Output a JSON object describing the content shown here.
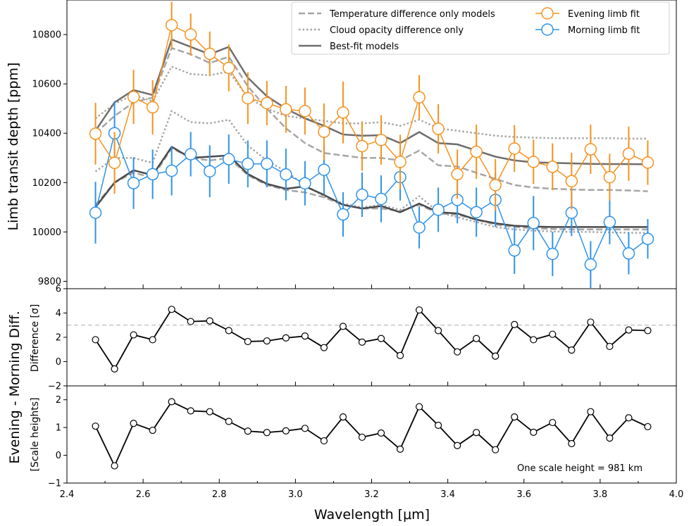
{
  "chart_data": [
    {
      "type": "line",
      "panel": "top",
      "ylabel": "Limb transit depth [ppm]",
      "xlim": [
        2.4,
        4.0
      ],
      "ylim": [
        9770,
        10940
      ],
      "yticks": [
        9800,
        10000,
        10200,
        10400,
        10600,
        10800
      ],
      "legend_position": "top-right",
      "legend": [
        {
          "label": "Temperature difference only models",
          "style": "dashed",
          "color": "#a6a6a6"
        },
        {
          "label": "Cloud opacity difference only",
          "style": "dotted",
          "color": "#a6a6a6"
        },
        {
          "label": "Best-fit models",
          "style": "solid",
          "color": "#6e6e6e"
        },
        {
          "label": "Evening limb fit",
          "style": "marker",
          "color": "#f5921e"
        },
        {
          "label": "Morning limb fit",
          "style": "marker",
          "color": "#2e93e8"
        }
      ],
      "x": [
        2.475,
        2.525,
        2.575,
        2.625,
        2.675,
        2.725,
        2.775,
        2.825,
        2.875,
        2.925,
        2.975,
        3.025,
        3.075,
        3.125,
        3.175,
        3.225,
        3.275,
        3.325,
        3.375,
        3.425,
        3.475,
        3.525,
        3.575,
        3.625,
        3.675,
        3.725,
        3.775,
        3.825,
        3.875,
        3.925
      ],
      "series": [
        {
          "name": "Evening limb fit",
          "color": "#f5921e",
          "values": [
            10398,
            10280,
            10547,
            10505,
            10838,
            10800,
            10722,
            10665,
            10542,
            10522,
            10497,
            10490,
            10406,
            10484,
            10348,
            10373,
            10284,
            10546,
            10418,
            10234,
            10325,
            10190,
            10338,
            10284,
            10264,
            10206,
            10335,
            10222,
            10317,
            10281
          ],
          "err": [
            125,
            125,
            110,
            110,
            95,
            85,
            90,
            95,
            105,
            90,
            95,
            95,
            115,
            125,
            100,
            100,
            110,
            90,
            100,
            100,
            110,
            105,
            95,
            90,
            95,
            115,
            100,
            95,
            110,
            90
          ]
        },
        {
          "name": "Morning limb fit",
          "color": "#2e93e8",
          "values": [
            10078,
            10400,
            10198,
            10234,
            10248,
            10315,
            10246,
            10295,
            10276,
            10276,
            10233,
            10197,
            10252,
            10071,
            10151,
            10134,
            10222,
            10018,
            10090,
            10130,
            10080,
            10130,
            9925,
            10036,
            9911,
            10078,
            9868,
            10040,
            9913,
            9972
          ],
          "err": [
            125,
            130,
            105,
            100,
            100,
            90,
            105,
            100,
            95,
            95,
            105,
            90,
            100,
            90,
            90,
            95,
            95,
            85,
            90,
            95,
            100,
            110,
            95,
            110,
            90,
            95,
            95,
            90,
            85,
            80
          ]
        }
      ],
      "model_x": [
        2.475,
        2.525,
        2.575,
        2.625,
        2.675,
        2.725,
        2.775,
        2.825,
        2.875,
        2.925,
        2.975,
        3.025,
        3.075,
        3.125,
        3.175,
        3.225,
        3.275,
        3.325,
        3.375,
        3.425,
        3.475,
        3.525,
        3.575,
        3.625,
        3.675,
        3.725,
        3.775,
        3.825,
        3.875,
        3.925
      ],
      "models": [
        {
          "name": "Temperature difference only models (evening)",
          "style": "dashed",
          "color": "#a6a6a6",
          "values": [
            10400,
            10470,
            10525,
            10545,
            10745,
            10720,
            10685,
            10710,
            10590,
            10500,
            10420,
            10360,
            10320,
            10310,
            10300,
            10300,
            10290,
            10330,
            10270,
            10265,
            10240,
            10215,
            10190,
            10180,
            10175,
            10172,
            10170,
            10170,
            10168,
            10165
          ]
        },
        {
          "name": "Temperature difference only models (morning)",
          "style": "dashed",
          "color": "#a6a6a6",
          "values": [
            10110,
            10200,
            10240,
            10220,
            10340,
            10300,
            10290,
            10300,
            10230,
            10190,
            10170,
            10160,
            10140,
            10110,
            10095,
            10095,
            10085,
            10110,
            10075,
            10070,
            10050,
            10030,
            10020,
            10015,
            10012,
            10010,
            10010,
            10010,
            10010,
            10010
          ]
        },
        {
          "name": "Cloud opacity difference only (upper)",
          "style": "dotted",
          "color": "#a6a6a6",
          "values": [
            10460,
            10520,
            10555,
            10530,
            10670,
            10640,
            10635,
            10650,
            10545,
            10500,
            10470,
            10460,
            10450,
            10440,
            10440,
            10445,
            10430,
            10455,
            10420,
            10410,
            10400,
            10390,
            10385,
            10382,
            10380,
            10380,
            10380,
            10380,
            10378,
            10378
          ]
        },
        {
          "name": "Cloud opacity difference only (lower)",
          "style": "dotted",
          "color": "#a6a6a6",
          "values": [
            10245,
            10300,
            10300,
            10280,
            10490,
            10445,
            10440,
            10455,
            10350,
            10290,
            10245,
            10190,
            10145,
            10115,
            10100,
            10110,
            10090,
            10145,
            10080,
            10060,
            10040,
            10020,
            10010,
            10005,
            10002,
            10000,
            10000,
            9998,
            9997,
            9996
          ]
        },
        {
          "name": "Best-fit models (evening)",
          "style": "solid",
          "color": "#6e6e6e",
          "values": [
            10410,
            10525,
            10575,
            10555,
            10780,
            10750,
            10720,
            10750,
            10625,
            10550,
            10500,
            10460,
            10430,
            10395,
            10390,
            10392,
            10360,
            10405,
            10360,
            10355,
            10330,
            10305,
            10290,
            10282,
            10280,
            10278,
            10276,
            10275,
            10275,
            10274
          ]
        },
        {
          "name": "Best-fit models (morning)",
          "style": "solid",
          "color": "#4a4a4a",
          "values": [
            10100,
            10200,
            10250,
            10230,
            10345,
            10300,
            10305,
            10310,
            10235,
            10195,
            10175,
            10185,
            10150,
            10110,
            10095,
            10105,
            10080,
            10115,
            10080,
            10075,
            10050,
            10035,
            10025,
            10022,
            10020,
            10020,
            10020,
            10020,
            10020,
            10020
          ]
        }
      ]
    },
    {
      "type": "line",
      "panel": "middle",
      "ylabel": "Difference [σ]",
      "xlim": [
        2.4,
        4.0
      ],
      "ylim": [
        -2,
        6
      ],
      "yticks": [
        -2,
        0,
        2,
        4,
        6
      ],
      "reference_line": {
        "y": 3,
        "style": "dashed",
        "color": "#c8c8c8"
      },
      "x": [
        2.475,
        2.525,
        2.575,
        2.625,
        2.675,
        2.725,
        2.775,
        2.825,
        2.875,
        2.925,
        2.975,
        3.025,
        3.075,
        3.125,
        3.175,
        3.225,
        3.275,
        3.325,
        3.375,
        3.425,
        3.475,
        3.525,
        3.575,
        3.625,
        3.675,
        3.725,
        3.775,
        3.825,
        3.875,
        3.925
      ],
      "values": [
        1.8,
        -0.6,
        2.2,
        1.8,
        4.3,
        3.3,
        3.35,
        2.55,
        1.65,
        1.7,
        1.95,
        2.1,
        1.15,
        2.9,
        1.6,
        1.9,
        0.5,
        4.25,
        2.55,
        0.8,
        1.9,
        0.45,
        3.05,
        1.8,
        2.25,
        0.95,
        3.25,
        1.25,
        2.6,
        2.55
      ]
    },
    {
      "type": "line",
      "panel": "bottom",
      "ylabel": "[Scale heights]",
      "xlabel": "Wavelength [μm]",
      "xlim": [
        2.4,
        4.0
      ],
      "xticks": [
        2.4,
        2.6,
        2.8,
        3.0,
        3.2,
        3.4,
        3.6,
        3.8,
        4.0
      ],
      "xtick_labels": [
        "2.4",
        "2.6",
        "2.8",
        "3.0",
        "3.2",
        "3.4",
        "3.6",
        "3.8",
        "4.0"
      ],
      "ylim": [
        -1,
        2.5
      ],
      "yticks": [
        -1,
        0,
        1,
        2
      ],
      "annotation": "One scale height = 981 km",
      "x": [
        2.475,
        2.525,
        2.575,
        2.625,
        2.675,
        2.725,
        2.775,
        2.825,
        2.875,
        2.925,
        2.975,
        3.025,
        3.075,
        3.125,
        3.175,
        3.225,
        3.275,
        3.325,
        3.375,
        3.425,
        3.475,
        3.525,
        3.575,
        3.625,
        3.675,
        3.725,
        3.775,
        3.825,
        3.875,
        3.925
      ],
      "values": [
        1.05,
        -0.38,
        1.15,
        0.9,
        1.93,
        1.6,
        1.57,
        1.22,
        0.87,
        0.82,
        0.88,
        0.97,
        0.52,
        1.38,
        0.65,
        0.8,
        0.22,
        1.75,
        1.08,
        0.35,
        0.82,
        0.2,
        1.38,
        0.83,
        1.18,
        0.42,
        1.57,
        0.62,
        1.35,
        1.03
      ]
    }
  ],
  "shared_ylabel": "Evening - Morning Diff."
}
